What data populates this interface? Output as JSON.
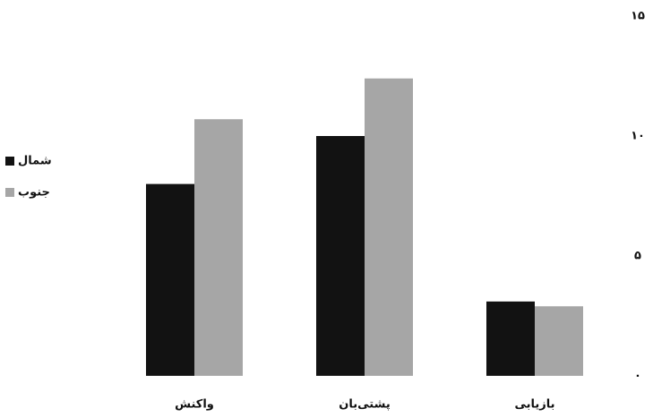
{
  "chart_data": {
    "type": "bar",
    "categories": [
      "بازیابی",
      "پشتی‌بان",
      "واکنش"
    ],
    "series": [
      {
        "name": "شمال",
        "color": "#121212",
        "values": [
          3.1,
          10,
          8
        ]
      },
      {
        "name": "جنوب",
        "color": "#a6a6a6",
        "values": [
          2.9,
          12.4,
          10.7
        ]
      }
    ],
    "ylim": [
      0,
      15
    ],
    "yticks": [
      {
        "value": 0,
        "label": "۰"
      },
      {
        "value": 5,
        "label": "۵"
      },
      {
        "value": 10,
        "label": "۱۰"
      },
      {
        "value": 15,
        "label": "۱۵"
      }
    ],
    "grid": false,
    "legend": "left"
  }
}
